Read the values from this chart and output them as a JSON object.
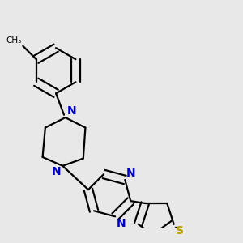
{
  "bg_color": "#e8e8e8",
  "bond_color": "#000000",
  "N_color": "#0000cc",
  "S_color": "#b8a000",
  "line_width": 1.6,
  "font_size": 10,
  "figsize": [
    3.0,
    3.0
  ],
  "dpi": 100,
  "xlim": [
    0.05,
    0.95
  ],
  "ylim": [
    0.18,
    0.98
  ]
}
